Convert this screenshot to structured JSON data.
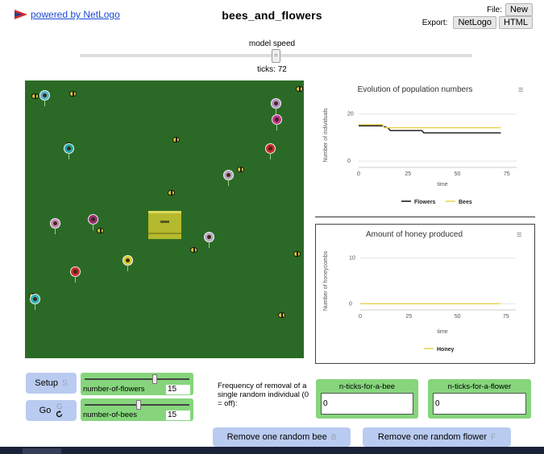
{
  "header": {
    "powered_by": "powered by NetLogo",
    "model_title": "bees_and_flowers",
    "file_label": "File:",
    "new_button": "New",
    "export_label": "Export:",
    "export_netlogo": "NetLogo",
    "export_html": "HTML"
  },
  "speed": {
    "label": "model speed",
    "handle": "=",
    "ticks_text": "ticks: 72",
    "value": 0.5
  },
  "plot1": {
    "title": "Evolution of population numbers",
    "ylabel": "Number of individuals",
    "xlabel": "time",
    "y_ticks": [
      "20",
      "0"
    ],
    "x_ticks": [
      "0",
      "25",
      "50",
      "75"
    ],
    "legend": [
      "Flowers",
      "Bees"
    ],
    "menu_icon": "menu-icon"
  },
  "plot2": {
    "title": "Amount of honey produced",
    "ylabel": "Number of honeycombs",
    "xlabel": "time",
    "y_ticks": [
      "10",
      "0"
    ],
    "x_ticks": [
      "0",
      "25",
      "50",
      "75"
    ],
    "legend": [
      "Honey"
    ],
    "menu_icon": "menu-icon"
  },
  "chart_data": [
    {
      "type": "line",
      "title": "Evolution of population numbers",
      "xlabel": "time",
      "ylabel": "Number of individuals",
      "xlim": [
        0,
        80
      ],
      "ylim": [
        -2,
        24
      ],
      "series": [
        {
          "name": "Flowers",
          "color": "#111111",
          "x": [
            0,
            12,
            15,
            16,
            32,
            33,
            72
          ],
          "y": [
            15,
            15,
            14,
            13,
            13,
            12,
            12
          ]
        },
        {
          "name": "Bees",
          "color": "#e8d44d",
          "x": [
            0,
            12,
            13,
            72
          ],
          "y": [
            15.5,
            15.5,
            14.2,
            14.2
          ]
        }
      ]
    },
    {
      "type": "line",
      "title": "Amount of honey produced",
      "xlabel": "time",
      "ylabel": "Number of honeycombs",
      "xlim": [
        0,
        80
      ],
      "ylim": [
        -1,
        12
      ],
      "series": [
        {
          "name": "Honey",
          "color": "#e8d44d",
          "x": [
            0,
            72
          ],
          "y": [
            0,
            0
          ]
        }
      ]
    }
  ],
  "controls": {
    "setup": {
      "label": "Setup",
      "key": "S"
    },
    "go": {
      "label": "Go",
      "key": "G",
      "icon": "forever-arrow-icon"
    },
    "flowers_slider": {
      "label": "number-of-flowers",
      "value": "15",
      "fraction": 0.68
    },
    "bees_slider": {
      "label": "number-of-bees",
      "value": "15",
      "fraction": 0.52
    },
    "freq_note": "Frequency of removal of a single random individual (0 = off):",
    "ticks_bee": {
      "label": "n-ticks-for-a-bee",
      "value": "0"
    },
    "ticks_flower": {
      "label": "n-ticks-for-a-flower",
      "value": "0"
    },
    "remove_bee": {
      "label": "Remove one random bee",
      "key": "B"
    },
    "remove_flower": {
      "label": "Remove one random flower",
      "key": "F"
    }
  },
  "colors": {
    "world": "#2b6a26",
    "button": "#b9cbf0",
    "widget": "#86d57c",
    "bee": "#cfc341",
    "hive": "#b5b92d"
  }
}
